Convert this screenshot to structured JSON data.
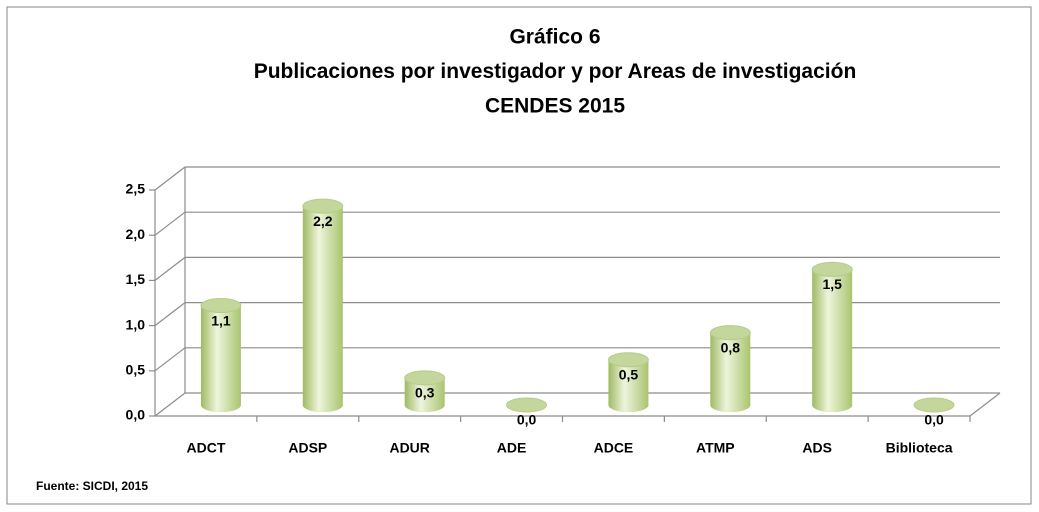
{
  "chart_data": {
    "type": "bar",
    "title": [
      "Gráfico 6",
      "Publicaciones por investigador y por Areas de investigación",
      "CENDES 2015"
    ],
    "source": "Fuente: SICDI, 2015",
    "categories": [
      "ADCT",
      "ADSP",
      "ADUR",
      "ADE",
      "ADCE",
      "ATMP",
      "ADS",
      "Biblioteca"
    ],
    "values": [
      1.1,
      2.2,
      0.3,
      0.0,
      0.5,
      0.8,
      1.5,
      0.0
    ],
    "value_labels": [
      "1,1",
      "2,2",
      "0,3",
      "0,0",
      "0,5",
      "0,8",
      "1,5",
      "0,0"
    ],
    "color": "#c3d69b",
    "ylim": [
      0,
      2.5
    ],
    "yticks": [
      {
        "value": 0,
        "label": "0,0"
      },
      {
        "value": 0.5,
        "label": "0,5"
      },
      {
        "value": 1,
        "label": "1,0"
      },
      {
        "value": 1.5,
        "label": "1,5"
      },
      {
        "value": 2,
        "label": "2,0"
      },
      {
        "value": 2.5,
        "label": "2,5"
      }
    ],
    "grid": true
  }
}
